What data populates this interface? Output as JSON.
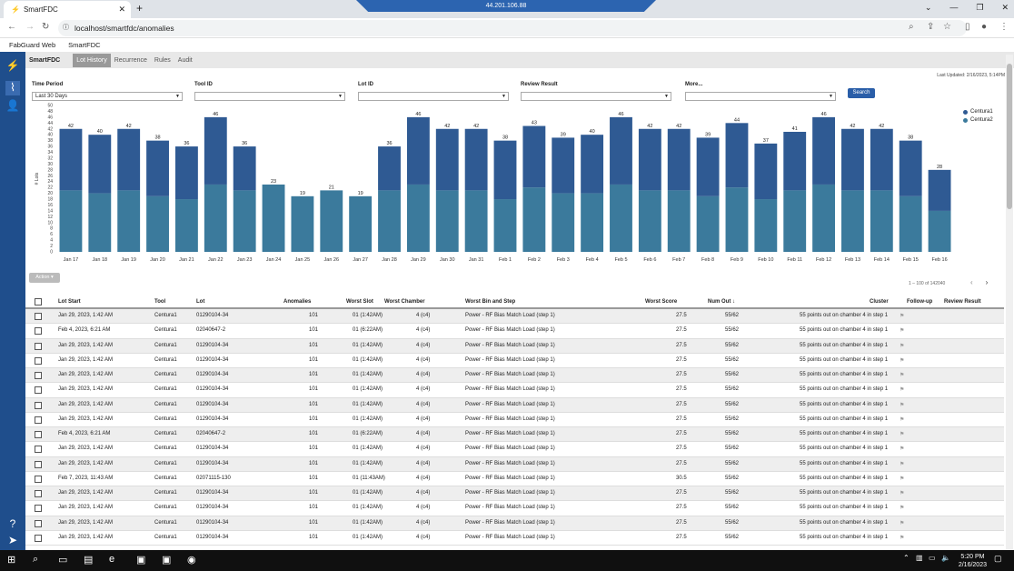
{
  "browser": {
    "tab_title": "SmartFDC",
    "url": "localhost/smartfdc/anomalies",
    "remote_ip": "44.201.106.88",
    "bookmarks": [
      "FabGuard Web",
      "SmartFDC"
    ]
  },
  "app": {
    "brand": "SmartFDC",
    "tabs": [
      "Lot History",
      "Recurrence",
      "Rules",
      "Audit"
    ],
    "last_updated": "Last Updated: 2/16/2023, 5:14PM"
  },
  "filters": {
    "time_period": {
      "label": "Time Period",
      "value": "Last 30 Days"
    },
    "tool_id": {
      "label": "Tool ID",
      "value": ""
    },
    "lot_id": {
      "label": "Lot ID",
      "value": ""
    },
    "review_result": {
      "label": "Review Result",
      "value": ""
    },
    "more": {
      "label": "More...",
      "value": ""
    },
    "search_label": "Search"
  },
  "chart_data": {
    "type": "bar",
    "ylabel": "# Lots",
    "ylim": [
      0,
      50
    ],
    "yticks": [
      0,
      2,
      4,
      6,
      8,
      10,
      12,
      14,
      16,
      18,
      20,
      22,
      24,
      26,
      28,
      30,
      32,
      34,
      36,
      38,
      40,
      42,
      44,
      46,
      48,
      50
    ],
    "categories": [
      "Jan 17",
      "Jan 18",
      "Jan 19",
      "Jan 20",
      "Jan 21",
      "Jan 22",
      "Jan 23",
      "Jan 24",
      "Jan 25",
      "Jan 26",
      "Jan 27",
      "Jan 28",
      "Jan 29",
      "Jan 30",
      "Jan 31",
      "Feb 1",
      "Feb 2",
      "Feb 3",
      "Feb 4",
      "Feb 5",
      "Feb 6",
      "Feb 7",
      "Feb 8",
      "Feb 9",
      "Feb 10",
      "Feb 11",
      "Feb 12",
      "Feb 13",
      "Feb 14",
      "Feb 15",
      "Feb 16"
    ],
    "totals": [
      42,
      40,
      42,
      38,
      36,
      46,
      36,
      23,
      19,
      21,
      19,
      36,
      46,
      42,
      42,
      38,
      43,
      39,
      40,
      46,
      42,
      42,
      39,
      44,
      37,
      41,
      46,
      42,
      42,
      38,
      28
    ],
    "series": [
      {
        "name": "Centura1",
        "color": "#2f5a93",
        "values": [
          21,
          20,
          21,
          19,
          18,
          23,
          15,
          0,
          0,
          0,
          0,
          15,
          23,
          21,
          21,
          20,
          21,
          19,
          20,
          23,
          21,
          21,
          20,
          22,
          19,
          20,
          23,
          21,
          21,
          19,
          14
        ]
      },
      {
        "name": "Centura2",
        "color": "#3b7a9c",
        "values": [
          21,
          20,
          21,
          19,
          18,
          23,
          21,
          23,
          19,
          21,
          19,
          21,
          23,
          21,
          21,
          18,
          22,
          20,
          20,
          23,
          21,
          21,
          19,
          22,
          18,
          21,
          23,
          21,
          21,
          19,
          14
        ]
      }
    ],
    "legend": "right"
  },
  "table": {
    "action_label": "Action",
    "pager": "1 – 100 of 142040",
    "headers": [
      "Lot Start",
      "Tool",
      "Lot",
      "Anomalies",
      "Worst Slot",
      "Worst Chamber",
      "Worst Bin and Step",
      "Worst Score",
      "Num Out",
      "Cluster",
      "Follow-up",
      "Review Result"
    ],
    "rows": [
      [
        "Jan 29, 2023, 1:42 AM",
        "Centura1",
        "01290104-34",
        "101",
        "01 (1:42AM)",
        "4 (c4)",
        "Power - RF Bias Match Load (step 1)",
        "27.5",
        "55/62",
        "55 points out on chamber 4 in step 1"
      ],
      [
        "Feb 4, 2023, 6:21 AM",
        "Centura1",
        "02040647-2",
        "101",
        "01 (6:22AM)",
        "4 (c4)",
        "Power - RF Bias Match Load (step 1)",
        "27.5",
        "55/62",
        "55 points out on chamber 4 in step 1"
      ],
      [
        "Jan 29, 2023, 1:42 AM",
        "Centura1",
        "01290104-34",
        "101",
        "01 (1:42AM)",
        "4 (c4)",
        "Power - RF Bias Match Load (step 1)",
        "27.5",
        "55/62",
        "55 points out on chamber 4 in step 1"
      ],
      [
        "Jan 29, 2023, 1:42 AM",
        "Centura1",
        "01290104-34",
        "101",
        "01 (1:42AM)",
        "4 (c4)",
        "Power - RF Bias Match Load (step 1)",
        "27.5",
        "55/62",
        "55 points out on chamber 4 in step 1"
      ],
      [
        "Jan 29, 2023, 1:42 AM",
        "Centura1",
        "01290104-34",
        "101",
        "01 (1:42AM)",
        "4 (c4)",
        "Power - RF Bias Match Load (step 1)",
        "27.5",
        "55/62",
        "55 points out on chamber 4 in step 1"
      ],
      [
        "Jan 29, 2023, 1:42 AM",
        "Centura1",
        "01290104-34",
        "101",
        "01 (1:42AM)",
        "4 (c4)",
        "Power - RF Bias Match Load (step 1)",
        "27.5",
        "55/62",
        "55 points out on chamber 4 in step 1"
      ],
      [
        "Jan 29, 2023, 1:42 AM",
        "Centura1",
        "01290104-34",
        "101",
        "01 (1:42AM)",
        "4 (c4)",
        "Power - RF Bias Match Load (step 1)",
        "27.5",
        "55/62",
        "55 points out on chamber 4 in step 1"
      ],
      [
        "Jan 29, 2023, 1:42 AM",
        "Centura1",
        "01290104-34",
        "101",
        "01 (1:42AM)",
        "4 (c4)",
        "Power - RF Bias Match Load (step 1)",
        "27.5",
        "55/62",
        "55 points out on chamber 4 in step 1"
      ],
      [
        "Feb 4, 2023, 6:21 AM",
        "Centura1",
        "02040647-2",
        "101",
        "01 (6:22AM)",
        "4 (c4)",
        "Power - RF Bias Match Load (step 1)",
        "27.5",
        "55/62",
        "55 points out on chamber 4 in step 1"
      ],
      [
        "Jan 29, 2023, 1:42 AM",
        "Centura1",
        "01290104-34",
        "101",
        "01 (1:42AM)",
        "4 (c4)",
        "Power - RF Bias Match Load (step 1)",
        "27.5",
        "55/62",
        "55 points out on chamber 4 in step 1"
      ],
      [
        "Jan 29, 2023, 1:42 AM",
        "Centura1",
        "01290104-34",
        "101",
        "01 (1:42AM)",
        "4 (c4)",
        "Power - RF Bias Match Load (step 1)",
        "27.5",
        "55/62",
        "55 points out on chamber 4 in step 1"
      ],
      [
        "Feb 7, 2023, 11:43 AM",
        "Centura1",
        "02071115-130",
        "101",
        "01 (11:43AM)",
        "4 (c4)",
        "Power - RF Bias Match Load (step 1)",
        "30.5",
        "55/62",
        "55 points out on chamber 4 in step 1"
      ],
      [
        "Jan 29, 2023, 1:42 AM",
        "Centura1",
        "01290104-34",
        "101",
        "01 (1:42AM)",
        "4 (c4)",
        "Power - RF Bias Match Load (step 1)",
        "27.5",
        "55/62",
        "55 points out on chamber 4 in step 1"
      ],
      [
        "Jan 29, 2023, 1:42 AM",
        "Centura1",
        "01290104-34",
        "101",
        "01 (1:42AM)",
        "4 (c4)",
        "Power - RF Bias Match Load (step 1)",
        "27.5",
        "55/62",
        "55 points out on chamber 4 in step 1"
      ],
      [
        "Jan 29, 2023, 1:42 AM",
        "Centura1",
        "01290104-34",
        "101",
        "01 (1:42AM)",
        "4 (c4)",
        "Power - RF Bias Match Load (step 1)",
        "27.5",
        "55/62",
        "55 points out on chamber 4 in step 1"
      ],
      [
        "Jan 29, 2023, 1:42 AM",
        "Centura1",
        "01290104-34",
        "101",
        "01 (1:42AM)",
        "4 (c4)",
        "Power - RF Bias Match Load (step 1)",
        "27.5",
        "55/62",
        "55 points out on chamber 4 in step 1"
      ]
    ]
  },
  "taskbar": {
    "time": "5:20 PM",
    "date": "2/16/2023"
  }
}
